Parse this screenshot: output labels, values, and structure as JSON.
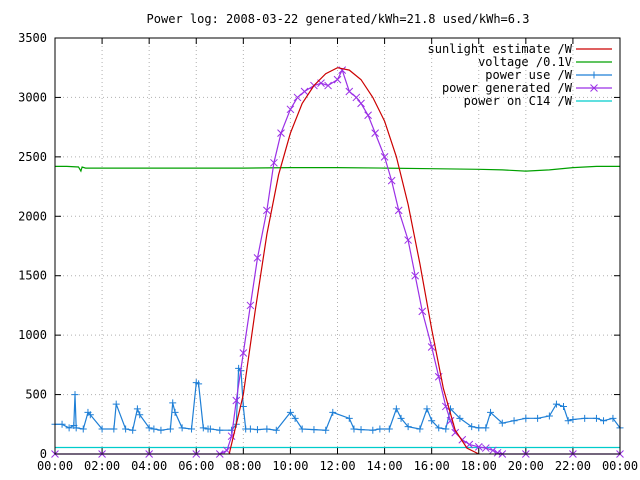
{
  "chart_data": {
    "type": "line",
    "title": "Power log: 2008-03-22 generated/kWh=21.8 used/kWh=6.3",
    "xlabel": "",
    "ylabel": "",
    "xlim": [
      0,
      24
    ],
    "ylim": [
      0,
      3500
    ],
    "grid": true,
    "legend_position": "top-right",
    "x_ticks": [
      "00:00",
      "02:00",
      "04:00",
      "06:00",
      "08:00",
      "10:00",
      "12:00",
      "14:00",
      "16:00",
      "18:00",
      "20:00",
      "22:00",
      "00:00"
    ],
    "y_ticks": [
      "0",
      "500",
      "1000",
      "1500",
      "2000",
      "2500",
      "3000",
      "3500"
    ],
    "series": [
      {
        "name": "sunlight estimate /W",
        "color": "#cc0000",
        "style": "line",
        "x": [
          7.4,
          8.0,
          8.5,
          9.0,
          9.5,
          10.0,
          10.5,
          11.0,
          11.5,
          12.0,
          12.5,
          13.0,
          13.5,
          14.0,
          14.5,
          15.0,
          15.5,
          16.0,
          16.5,
          17.0,
          17.5,
          18.0
        ],
        "y": [
          0,
          500,
          1200,
          1850,
          2350,
          2700,
          2950,
          3100,
          3200,
          3250,
          3230,
          3150,
          3000,
          2800,
          2500,
          2100,
          1600,
          1050,
          550,
          200,
          50,
          0
        ]
      },
      {
        "name": "voltage /0.1V",
        "color": "#00a000",
        "style": "line",
        "x": [
          0,
          0.5,
          1.0,
          1.1,
          1.15,
          1.3,
          2,
          3,
          4,
          6,
          8,
          10,
          12,
          14,
          16,
          18,
          19,
          20,
          21,
          22,
          23,
          24
        ],
        "y": [
          2420,
          2420,
          2415,
          2380,
          2415,
          2405,
          2405,
          2405,
          2405,
          2405,
          2405,
          2410,
          2410,
          2405,
          2400,
          2395,
          2390,
          2380,
          2390,
          2410,
          2420,
          2420
        ]
      },
      {
        "name": "power use /W",
        "color": "#1e7fd6",
        "style": "linepoints-plus",
        "x": [
          0,
          0.3,
          0.6,
          0.8,
          0.85,
          0.9,
          1.2,
          1.4,
          1.5,
          2.0,
          2.5,
          2.6,
          3.0,
          3.3,
          3.5,
          3.6,
          4.0,
          4.2,
          4.5,
          4.9,
          5.0,
          5.1,
          5.4,
          5.8,
          6.0,
          6.1,
          6.3,
          6.5,
          6.6,
          7.0,
          7.5,
          7.7,
          7.8,
          7.9,
          8.0,
          8.1,
          8.3,
          8.6,
          9.0,
          9.4,
          10.0,
          10.2,
          10.5,
          11.0,
          11.5,
          11.8,
          12.5,
          12.7,
          13.0,
          13.5,
          13.8,
          14.2,
          14.5,
          14.7,
          15.0,
          15.5,
          15.8,
          16.0,
          16.3,
          16.6,
          16.8,
          17.2,
          17.7,
          18.0,
          18.3,
          18.5,
          19.0,
          19.5,
          20.0,
          20.5,
          21.0,
          21.3,
          21.6,
          21.8,
          22.0,
          22.5,
          23.0,
          23.3,
          23.7,
          24.0
        ],
        "y": [
          250,
          250,
          220,
          240,
          500,
          220,
          210,
          350,
          330,
          210,
          210,
          420,
          210,
          200,
          380,
          330,
          220,
          210,
          200,
          210,
          430,
          350,
          220,
          210,
          600,
          590,
          220,
          210,
          210,
          200,
          200,
          250,
          720,
          700,
          400,
          210,
          210,
          205,
          210,
          200,
          350,
          300,
          210,
          205,
          200,
          350,
          300,
          210,
          205,
          200,
          210,
          210,
          380,
          300,
          230,
          210,
          380,
          280,
          220,
          210,
          380,
          300,
          230,
          220,
          220,
          350,
          260,
          280,
          300,
          300,
          320,
          420,
          400,
          280,
          290,
          300,
          300,
          280,
          300,
          220
        ]
      },
      {
        "name": "power generated /W",
        "color": "#9b30e6",
        "style": "linepoints-x",
        "x": [
          0,
          2,
          4,
          6,
          7.0,
          7.3,
          7.5,
          7.7,
          8.0,
          8.3,
          8.6,
          9.0,
          9.3,
          9.6,
          10.0,
          10.3,
          10.6,
          11.0,
          11.3,
          11.6,
          12.0,
          12.2,
          12.5,
          12.8,
          13.0,
          13.3,
          13.6,
          14.0,
          14.3,
          14.6,
          15.0,
          15.3,
          15.6,
          16.0,
          16.3,
          16.6,
          16.8,
          17.0,
          17.3,
          17.6,
          18.0,
          18.3,
          18.6,
          18.8,
          19.0,
          20,
          22,
          24
        ],
        "y": [
          0,
          0,
          0,
          0,
          0,
          30,
          150,
          450,
          850,
          1250,
          1650,
          2050,
          2450,
          2700,
          2900,
          3000,
          3050,
          3100,
          3120,
          3100,
          3150,
          3230,
          3050,
          3000,
          2950,
          2850,
          2700,
          2500,
          2300,
          2050,
          1800,
          1500,
          1200,
          900,
          650,
          400,
          280,
          180,
          120,
          80,
          60,
          50,
          30,
          10,
          0,
          0,
          0,
          0
        ]
      },
      {
        "name": "power on C14 /W",
        "color": "#00cccc",
        "style": "line",
        "x": [
          0,
          24
        ],
        "y": [
          55,
          55
        ]
      }
    ]
  }
}
